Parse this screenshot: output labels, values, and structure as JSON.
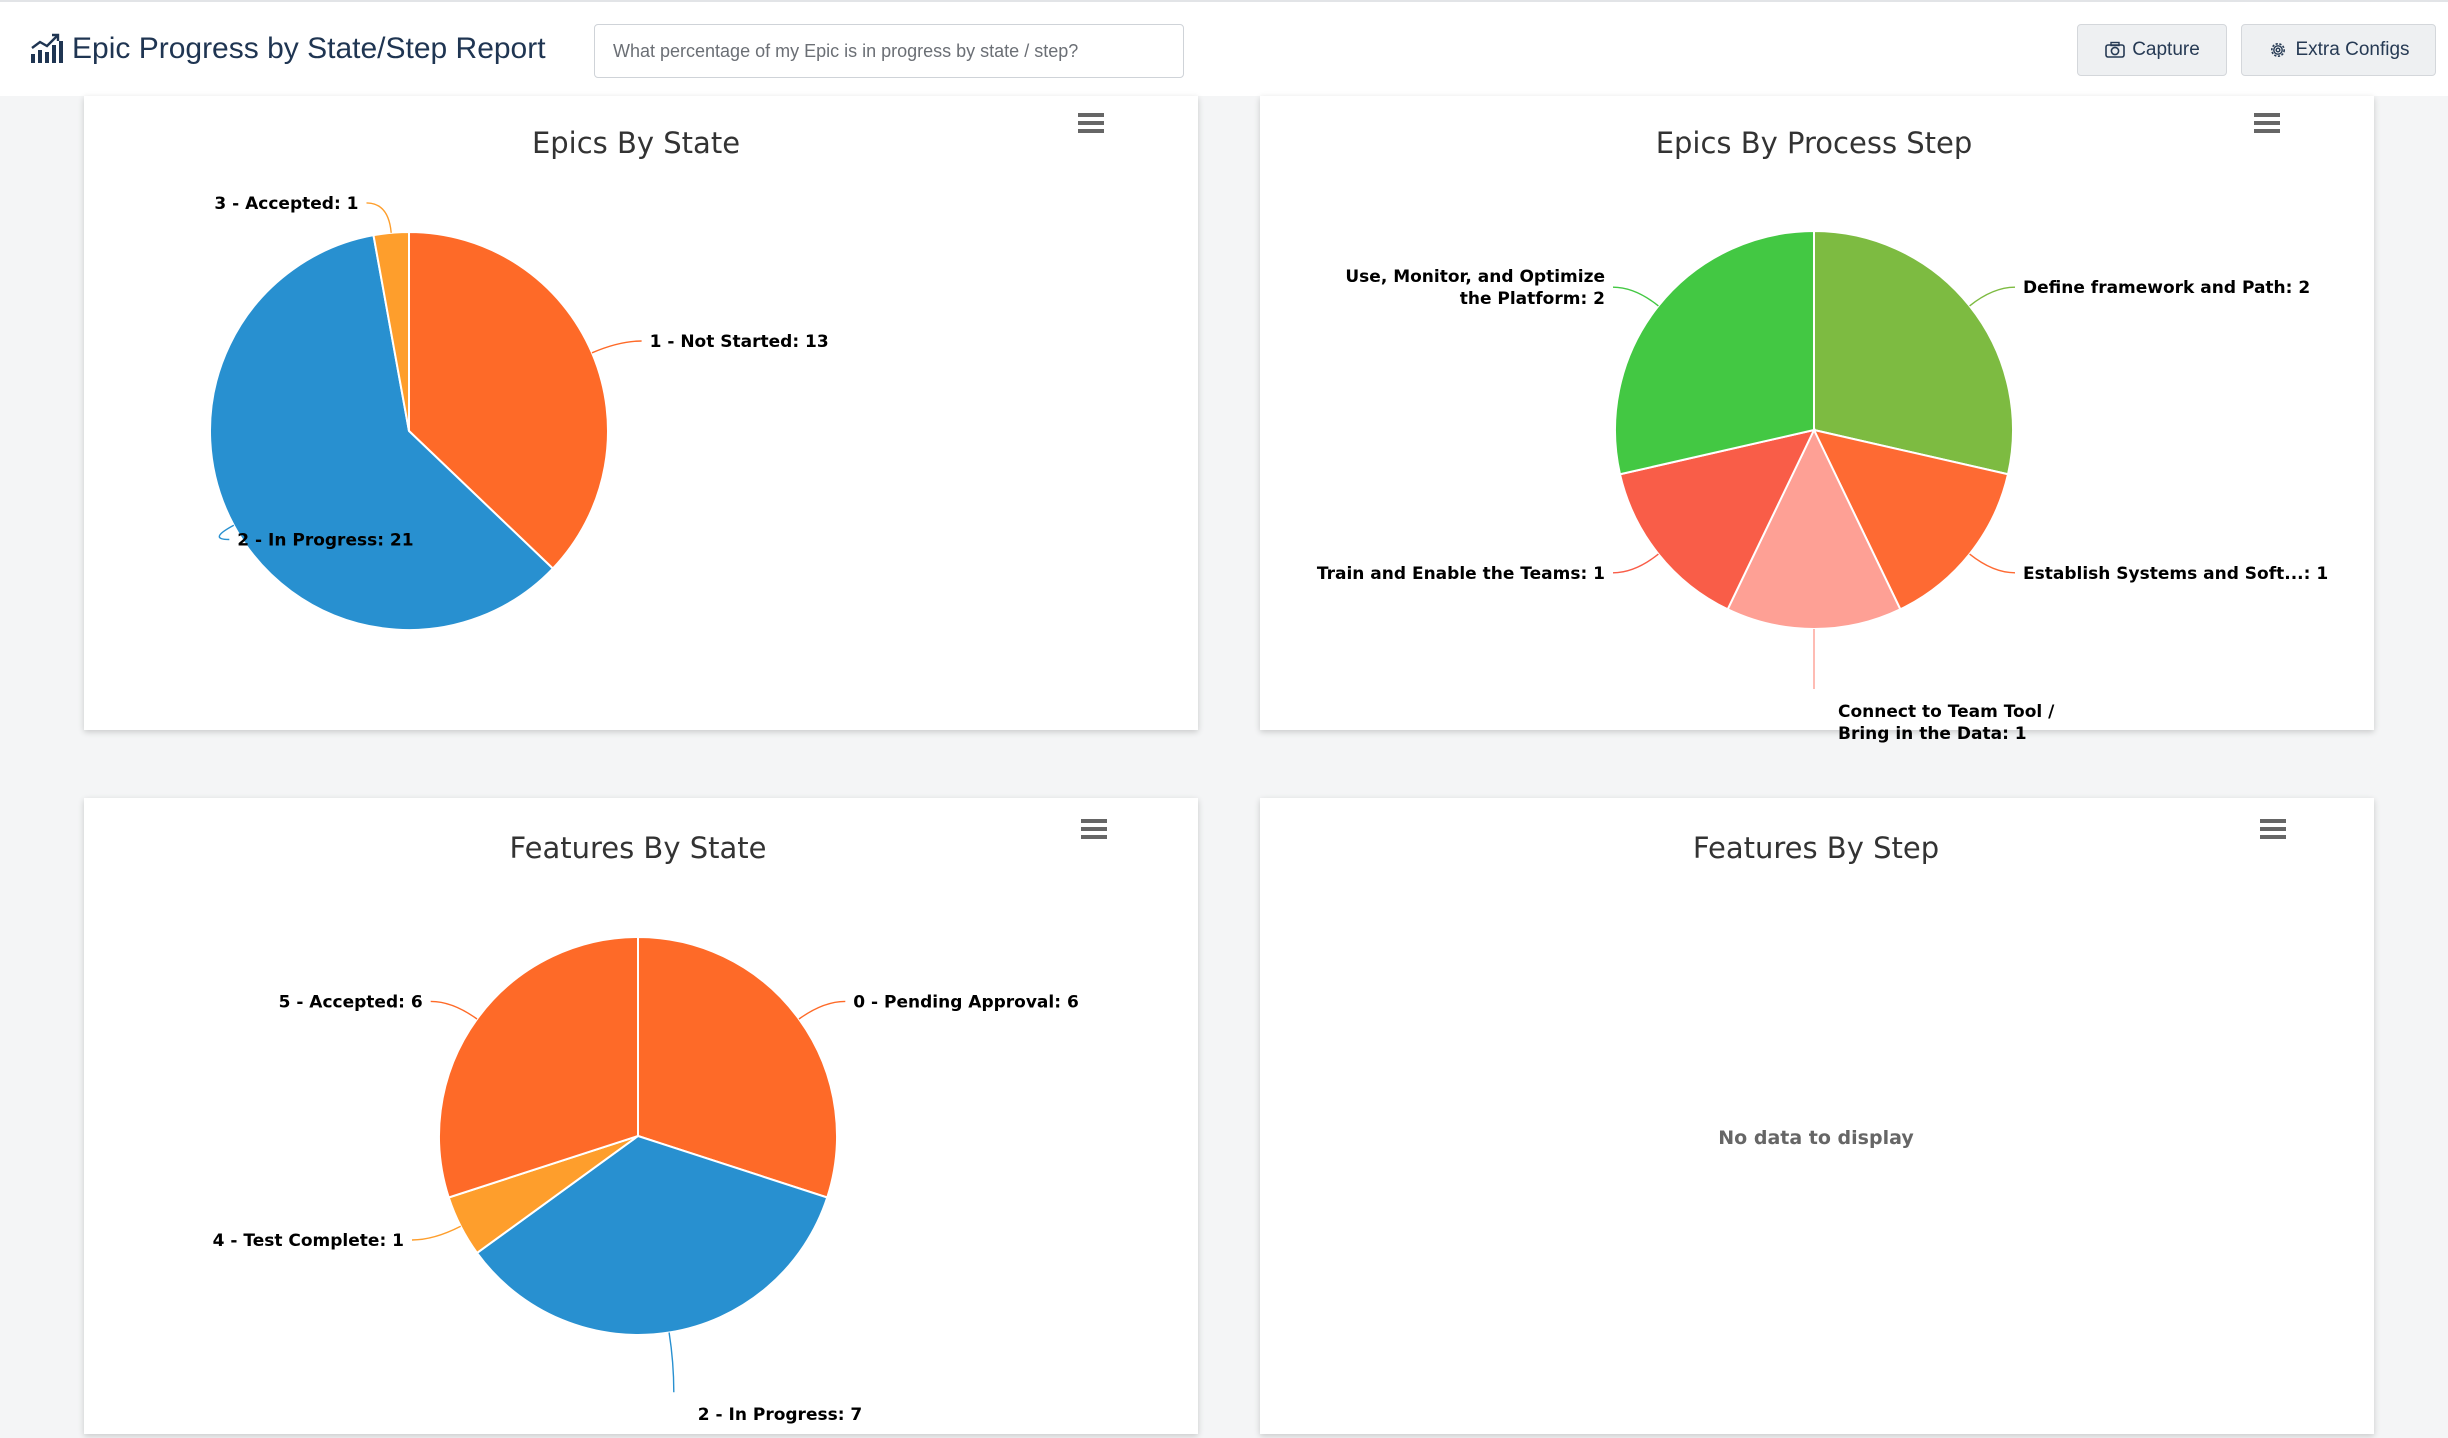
{
  "header": {
    "title": "Epic Progress by State/Step Report",
    "search_placeholder": "What percentage of my Epic is in progress by state / step?",
    "capture_label": "Capture",
    "extra_configs_label": "Extra Configs"
  },
  "chart_data": [
    {
      "type": "pie",
      "title": "Epics By State",
      "series": [
        {
          "name": "1 - Not Started",
          "value": 13,
          "color": "#FE6A28",
          "label": "1 - Not Started: 13"
        },
        {
          "name": "2 - In Progress",
          "value": 21,
          "color": "#2890D0",
          "label": "2 - In Progress: 21"
        },
        {
          "name": "3 - Accepted",
          "value": 1,
          "color": "#FE9E2C",
          "label": "3 - Accepted: 1"
        }
      ]
    },
    {
      "type": "pie",
      "title": "Epics By Process Step",
      "series": [
        {
          "name": "Define framework and Path",
          "value": 2,
          "color": "#7DBB41",
          "label": "Define framework and Path: 2"
        },
        {
          "name": "Establish Systems and Soft...",
          "value": 1,
          "color": "#FE6A33",
          "label": "Establish Systems and Soft...: 1"
        },
        {
          "name": "Connect to Team Tool / Bring in the Data",
          "value": 1,
          "color": "#FEA095",
          "label": "Connect to Team Tool / Bring in the Data: 1",
          "label_lines": [
            "Connect to Team Tool /",
            "Bring in the Data: 1"
          ]
        },
        {
          "name": "Train and Enable the Teams",
          "value": 1,
          "color": "#F95D48",
          "label": "Train and Enable the Teams: 1"
        },
        {
          "name": "Use, Monitor, and Optimize the Platform",
          "value": 2,
          "color": "#43C843",
          "label": "Use, Monitor, and Optimize the Platform: 2",
          "label_lines": [
            "Use, Monitor, and Optimize",
            "the Platform: 2"
          ]
        }
      ]
    },
    {
      "type": "pie",
      "title": "Features By State",
      "series": [
        {
          "name": "0 - Pending Approval",
          "value": 6,
          "color": "#FE6A28",
          "label": "0 - Pending Approval: 6"
        },
        {
          "name": "2 - In Progress",
          "value": 7,
          "color": "#2890D0",
          "label": "2 - In Progress: 7"
        },
        {
          "name": "4 - Test Complete",
          "value": 1,
          "color": "#FE9E2C",
          "label": "4 - Test Complete: 1"
        },
        {
          "name": "5 - Accepted",
          "value": 6,
          "color": "#FE6A28",
          "label": "5 - Accepted: 6"
        }
      ]
    },
    {
      "type": "pie",
      "title": "Features By Step",
      "series": [],
      "empty_message": "No data to display"
    }
  ]
}
